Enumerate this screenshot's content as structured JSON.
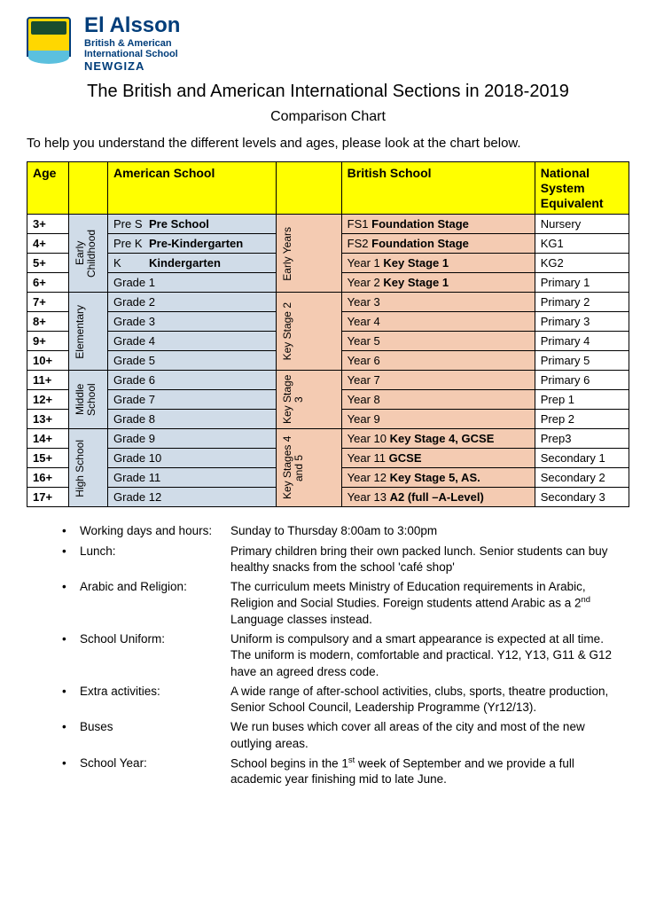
{
  "logo": {
    "main": "El Alsson",
    "sub1": "British & American",
    "sub2": "International School",
    "loc": "NEWGIZA"
  },
  "title": "The British and American International Sections in 2018-2019",
  "subtitle": "Comparison Chart",
  "intro": "To help you understand the different levels and ages, please look at the chart below.",
  "headers": {
    "age": "Age",
    "american": "American School",
    "british": "British School",
    "national": "National System Equivalent"
  },
  "cats_am": [
    "Early Childhood",
    "Elementary",
    "Middle School",
    "High School"
  ],
  "cats_br": [
    "Early Years",
    "Key Stage 2",
    "Key Stage 3",
    "Key Stages 4 and 5"
  ],
  "rows": [
    {
      "age": "3+",
      "am_pre": "Pre S",
      "am_main": "Pre School",
      "br_pre": "FS1",
      "br_main": "Foundation Stage",
      "nat": "Nursery"
    },
    {
      "age": "4+",
      "am_pre": "Pre K",
      "am_main": "Pre-Kindergarten",
      "br_pre": "FS2",
      "br_main": "Foundation Stage",
      "nat": "KG1"
    },
    {
      "age": "5+",
      "am_pre": "K",
      "am_main": "Kindergarten",
      "br_pre": "Year 1",
      "br_main": "Key Stage 1",
      "nat": "KG2"
    },
    {
      "age": "6+",
      "am_pre": "",
      "am_main": "Grade 1",
      "br_pre": "Year 2",
      "br_main": "Key Stage 1",
      "nat": "Primary 1"
    },
    {
      "age": "7+",
      "am_pre": "",
      "am_main": "Grade 2",
      "br_pre": "",
      "br_main": "Year 3",
      "nat": "Primary 2"
    },
    {
      "age": "8+",
      "am_pre": "",
      "am_main": "Grade 3",
      "br_pre": "",
      "br_main": "Year 4",
      "nat": "Primary 3"
    },
    {
      "age": "9+",
      "am_pre": "",
      "am_main": "Grade 4",
      "br_pre": "",
      "br_main": "Year 5",
      "nat": "Primary 4"
    },
    {
      "age": "10+",
      "am_pre": "",
      "am_main": "Grade 5",
      "br_pre": "",
      "br_main": "Year 6",
      "nat": "Primary 5"
    },
    {
      "age": "11+",
      "am_pre": "",
      "am_main": "Grade 6",
      "br_pre": "",
      "br_main": "Year 7",
      "nat": "Primary 6"
    },
    {
      "age": "12+",
      "am_pre": "",
      "am_main": "Grade 7",
      "br_pre": "",
      "br_main": "Year 8",
      "nat": "Prep 1"
    },
    {
      "age": "13+",
      "am_pre": "",
      "am_main": "Grade 8",
      "br_pre": "",
      "br_main": "Year 9",
      "nat": "Prep 2"
    },
    {
      "age": "14+",
      "am_pre": "",
      "am_main": "Grade 9",
      "br_pre": "Year 10",
      "br_main": "Key Stage 4, GCSE",
      "nat": "Prep3"
    },
    {
      "age": "15+",
      "am_pre": "",
      "am_main": "Grade 10",
      "br_pre": "Year 11",
      "br_main": "GCSE",
      "nat": "Secondary 1"
    },
    {
      "age": "16+",
      "am_pre": "",
      "am_main": "Grade 11",
      "br_pre": "Year 12",
      "br_main": "Key Stage 5, AS.",
      "nat": "Secondary 2"
    },
    {
      "age": "17+",
      "am_pre": "",
      "am_main": "Grade 12",
      "br_pre": "Year 13",
      "br_main": "A2 (full –A-Level)",
      "nat": "Secondary 3"
    }
  ],
  "notes": [
    {
      "label": "Working days and hours:",
      "val": "Sunday to Thursday 8:00am to 3:00pm"
    },
    {
      "label": "Lunch:",
      "val": "Primary children bring their own packed lunch. Senior students can buy healthy snacks from the school 'café shop'"
    },
    {
      "label": "Arabic and Religion:",
      "val": "The curriculum meets Ministry of Education requirements in Arabic, Religion and Social Studies. Foreign students attend Arabic as a 2<sup>nd</sup> Language classes instead."
    },
    {
      "label": "School Uniform:",
      "val": "Uniform is compulsory and a smart appearance is expected at all time. The uniform is modern, comfortable and practical. Y12, Y13, G11 & G12 have an agreed dress code."
    },
    {
      "label": "Extra activities:",
      "val": "A wide range of after-school activities, clubs, sports, theatre production, Senior School Council, Leadership Programme (Yr12/13)."
    },
    {
      "label": "Buses",
      "val": "We run buses which cover all areas of the city and most of the new outlying areas."
    },
    {
      "label": "School Year:",
      "val": "School begins in the 1<sup>st</sup> week of September and we provide a full academic year finishing mid to late June."
    }
  ],
  "styling": {
    "header_bg": "#ffff00",
    "american_cat_bg": "#d0dce8",
    "british_bg": "#f4cbb2",
    "border_color": "#000000",
    "bold_rows_am": [
      0,
      1,
      2
    ],
    "cat_spans_am": [
      4,
      4,
      3,
      4
    ],
    "cat_spans_br": [
      4,
      4,
      3,
      4
    ]
  }
}
